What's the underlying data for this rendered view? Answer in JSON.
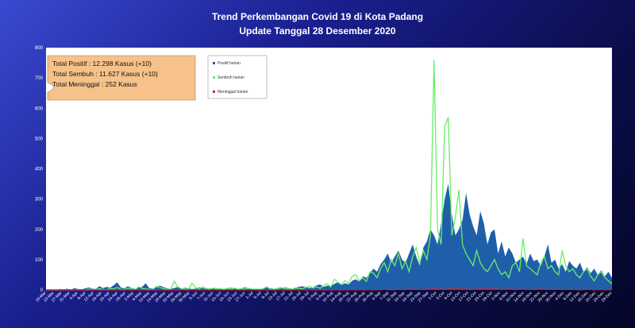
{
  "header": {
    "title": "Trend Perkembangan Covid 19 di Kota Padang",
    "subtitle": "Update Tanggal 28 Desember 2020"
  },
  "summary": {
    "line1": "Total Positif     : 12.298 Kasus (+10)",
    "line2": "Total Sembuh   : 11.627 Kasus (+10)",
    "line3": "Total Meninggal  :  252 Kasus"
  },
  "colors": {
    "positif": "#1f5faa",
    "sembuh": "#66ee66",
    "meninggal": "#dd2222",
    "summary_bg": "#f6c28a"
  },
  "chart_data": {
    "type": "area",
    "title": "Trend Perkembangan Covid 19 di Kota Padang",
    "subtitle": "Update Tanggal 28 Desember 2020",
    "ylim": [
      0,
      800
    ],
    "yticks": [
      "0",
      "100",
      "200",
      "300",
      "400",
      "500",
      "600",
      "700",
      "800"
    ],
    "x_tick_labels": [
      "18-Mar",
      "23-Mar",
      "27-Mar",
      "31-Mar",
      "4-Apr",
      "8-Apr",
      "12-Apr",
      "16-Apr",
      "20-Apr",
      "24-Apr",
      "28-Apr",
      "2-May",
      "6-May",
      "10-May",
      "14-May",
      "18-May",
      "22-May",
      "26-May",
      "30-May",
      "3-Jun",
      "7-Jun",
      "11-Jun",
      "15-Jun",
      "19-Jun",
      "23-Jun",
      "27-Jun",
      "1-Jul",
      "5-Jul",
      "9-Jul",
      "13-Jul",
      "17-Jul",
      "21-Jul",
      "25-Jul",
      "29-Jul",
      "2-Aug",
      "6-Aug",
      "10-Aug",
      "14-Aug",
      "18-Aug",
      "22-Aug",
      "26-Aug",
      "30-Aug",
      "3-Sep",
      "7-Sep",
      "11-Sep",
      "15-Sep",
      "19-Sep",
      "23-Sep",
      "27-Sep",
      "1-Oct",
      "5-Oct",
      "9-Oct",
      "13-Oct",
      "17-Oct",
      "21-Oct",
      "25-Oct",
      "29-Oct",
      "2-Nov",
      "6-Nov",
      "10-Nov",
      "14-Nov",
      "18-Nov",
      "22-Nov",
      "26-Nov",
      "30-Nov",
      "4-Dec",
      "8-Dec",
      "12-Dec",
      "16-Dec",
      "20-Dec",
      "24-Dec",
      "28-Dec"
    ],
    "series": [
      {
        "name": "Positif harian",
        "values": [
          0,
          2,
          1,
          0,
          3,
          2,
          4,
          1,
          6,
          3,
          2,
          5,
          8,
          4,
          3,
          12,
          6,
          10,
          7,
          15,
          25,
          8,
          5,
          12,
          6,
          3,
          8,
          10,
          22,
          6,
          4,
          8,
          14,
          9,
          5,
          3,
          6,
          10,
          4,
          7,
          5,
          3,
          4,
          8,
          6,
          3,
          5,
          4,
          6,
          3,
          2,
          5,
          7,
          4,
          3,
          6,
          8,
          5,
          4,
          3,
          2,
          5,
          9,
          6,
          4,
          3,
          5,
          8,
          6,
          4,
          7,
          10,
          12,
          9,
          6,
          8,
          15,
          18,
          10,
          14,
          12,
          20,
          25,
          16,
          22,
          18,
          30,
          35,
          28,
          45,
          40,
          55,
          70,
          60,
          85,
          100,
          120,
          90,
          110,
          130,
          100,
          90,
          120,
          150,
          110,
          80,
          140,
          160,
          200,
          180,
          150,
          220,
          300,
          350,
          250,
          180,
          200,
          230,
          320,
          250,
          210,
          180,
          260,
          220,
          150,
          190,
          200,
          120,
          160,
          110,
          140,
          120,
          90,
          100,
          110,
          85,
          120,
          95,
          100,
          80,
          110,
          150,
          90,
          100,
          70,
          85,
          60,
          95,
          80,
          70,
          90,
          60,
          75,
          55,
          70,
          50,
          65,
          45,
          60,
          40
        ],
        "color": "#1f5faa"
      },
      {
        "name": "Sembuh harian",
        "values": [
          0,
          0,
          0,
          0,
          0,
          0,
          1,
          0,
          0,
          2,
          0,
          0,
          3,
          1,
          0,
          4,
          2,
          0,
          5,
          3,
          8,
          2,
          1,
          6,
          3,
          0,
          10,
          5,
          3,
          2,
          1,
          12,
          8,
          4,
          2,
          1,
          28,
          10,
          4,
          3,
          2,
          22,
          8,
          3,
          10,
          5,
          2,
          6,
          3,
          4,
          2,
          5,
          3,
          6,
          2,
          4,
          3,
          5,
          2,
          3,
          2,
          4,
          10,
          3,
          2,
          5,
          8,
          4,
          3,
          2,
          6,
          5,
          4,
          8,
          12,
          6,
          10,
          5,
          15,
          20,
          10,
          35,
          25,
          18,
          30,
          22,
          45,
          50,
          30,
          40,
          28,
          60,
          55,
          40,
          70,
          90,
          60,
          100,
          80,
          120,
          70,
          95,
          60,
          110,
          140,
          90,
          130,
          100,
          180,
          760,
          200,
          150,
          540,
          570,
          180,
          240,
          330,
          150,
          120,
          100,
          80,
          130,
          90,
          70,
          60,
          80,
          100,
          70,
          50,
          60,
          40,
          80,
          90,
          60,
          170,
          80,
          70,
          60,
          50,
          90,
          110,
          70,
          80,
          60,
          50,
          130,
          80,
          60,
          70,
          50,
          40,
          60,
          70,
          45,
          30,
          50,
          60,
          40,
          30,
          20
        ],
        "color": "#66ee66"
      },
      {
        "name": "Meninggal harian",
        "values": [
          0,
          0,
          0,
          0,
          0,
          0,
          0,
          0,
          0,
          0,
          0,
          0,
          0,
          0,
          0,
          0,
          0,
          0,
          0,
          0,
          0,
          0,
          0,
          0,
          0,
          0,
          0,
          0,
          0,
          0,
          0,
          0,
          0,
          0,
          0,
          0,
          0,
          0,
          0,
          0,
          0,
          0,
          0,
          0,
          0,
          0,
          0,
          0,
          0,
          0,
          0,
          0,
          0,
          0,
          0,
          0,
          0,
          0,
          0,
          0,
          0,
          0,
          0,
          0,
          0,
          0,
          0,
          0,
          0,
          0,
          0,
          0,
          0,
          0,
          0,
          0,
          0,
          0,
          0,
          0,
          0,
          0,
          0,
          0,
          0,
          0,
          1,
          0,
          1,
          0,
          0,
          1,
          0,
          1,
          0,
          2,
          1,
          0,
          1,
          2,
          1,
          1,
          3,
          2,
          1,
          2,
          1,
          3,
          2,
          4,
          2,
          3,
          1,
          5,
          2,
          3,
          4,
          2,
          3,
          1,
          2,
          3,
          2,
          4,
          3,
          2,
          3,
          2,
          1,
          2,
          3,
          2,
          1,
          2,
          3,
          1,
          2,
          1,
          2,
          3,
          2,
          1,
          2,
          1,
          2,
          1,
          1,
          2,
          1,
          1,
          0,
          1,
          2,
          1,
          0,
          1,
          1,
          0,
          1,
          0
        ],
        "color": "#dd2222"
      }
    ],
    "legend_placement": "top-left"
  }
}
